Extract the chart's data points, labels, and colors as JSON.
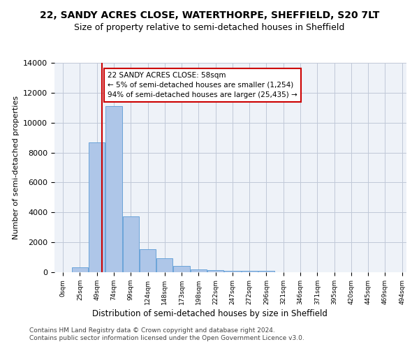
{
  "title1": "22, SANDY ACRES CLOSE, WATERTHORPE, SHEFFIELD, S20 7LT",
  "title2": "Size of property relative to semi-detached houses in Sheffield",
  "xlabel": "Distribution of semi-detached houses by size in Sheffield",
  "ylabel": "Number of semi-detached properties",
  "annotation_title": "22 SANDY ACRES CLOSE: 58sqm",
  "annotation_line1": "← 5% of semi-detached houses are smaller (1,254)",
  "annotation_line2": "94% of semi-detached houses are larger (25,435) →",
  "footer1": "Contains HM Land Registry data © Crown copyright and database right 2024.",
  "footer2": "Contains public sector information licensed under the Open Government Licence v3.0.",
  "property_size": 58,
  "bar_labels": [
    "0sqm",
    "25sqm",
    "49sqm",
    "74sqm",
    "99sqm",
    "124sqm",
    "148sqm",
    "173sqm",
    "198sqm",
    "222sqm",
    "247sqm",
    "272sqm",
    "296sqm",
    "321sqm",
    "346sqm",
    "371sqm",
    "395sqm",
    "420sqm",
    "445sqm",
    "469sqm",
    "494sqm"
  ],
  "bar_values": [
    0,
    350,
    8700,
    11100,
    3750,
    1550,
    950,
    400,
    210,
    155,
    105,
    105,
    105,
    0,
    0,
    0,
    0,
    0,
    0,
    0,
    0
  ],
  "bar_color": "#aec6e8",
  "bar_edge_color": "#5b9bd5",
  "vline_color": "#cc0000",
  "vline_x": 58,
  "box_color": "#cc0000",
  "ylim": [
    0,
    14000
  ],
  "yticks": [
    0,
    2000,
    4000,
    6000,
    8000,
    10000,
    12000,
    14000
  ],
  "grid_color": "#c0c8d8",
  "background_color": "#eef2f8",
  "title1_fontsize": 10,
  "title2_fontsize": 9,
  "annotation_fontsize": 7.5,
  "footer_fontsize": 6.5
}
